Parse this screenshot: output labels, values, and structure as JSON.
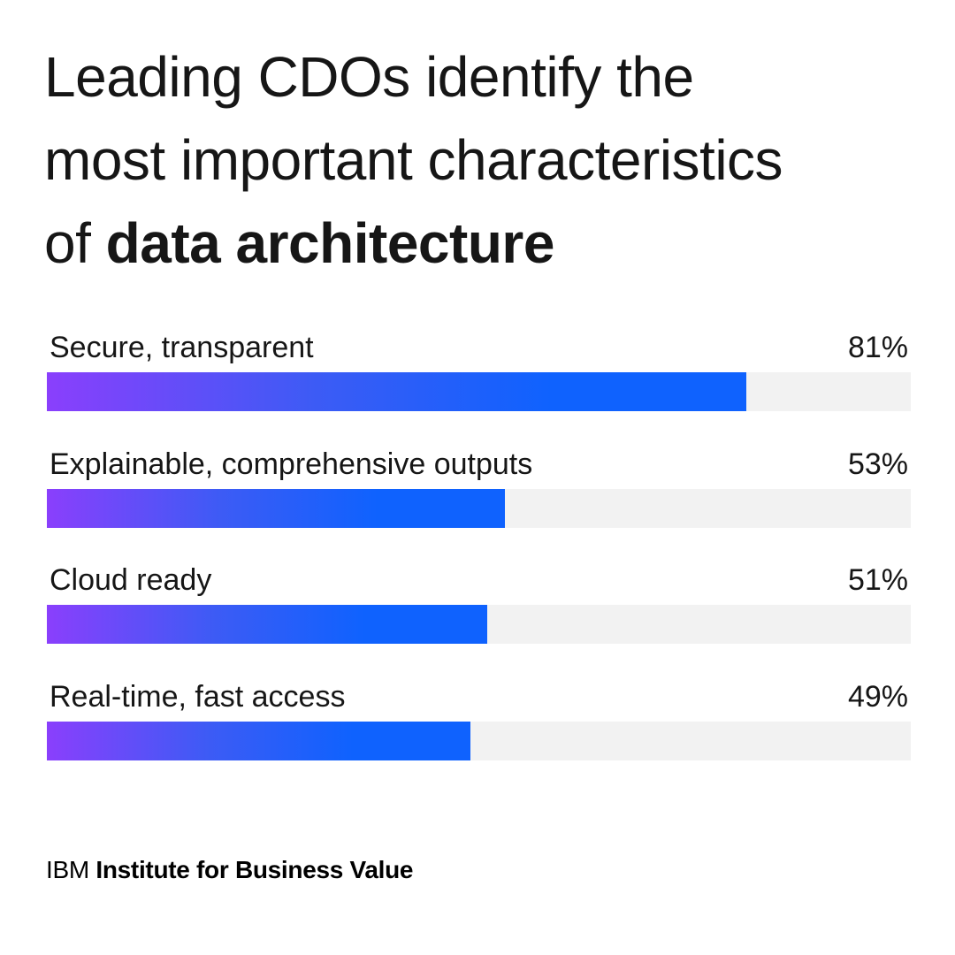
{
  "title": {
    "line1": "Leading CDOs identify the",
    "line2": "most important characteristics",
    "line3_prefix": "of",
    "line3_bold": "data architecture"
  },
  "chart_data": {
    "type": "bar",
    "orientation": "horizontal",
    "categories": [
      "Secure, transparent",
      "Explainable, comprehensive outputs",
      "Cloud ready",
      "Real-time, fast access"
    ],
    "values": [
      81,
      53,
      51,
      49
    ],
    "value_labels": [
      "81%",
      "53%",
      "51%",
      "49%"
    ],
    "xlim": [
      0,
      100
    ],
    "unit": "%",
    "grid": false,
    "bar_gradient": [
      "#8a3ffc",
      "#0f62fe"
    ],
    "track_color": "#f2f2f2"
  },
  "footer": {
    "brand": "IBM",
    "org": "Institute for Business Value"
  }
}
